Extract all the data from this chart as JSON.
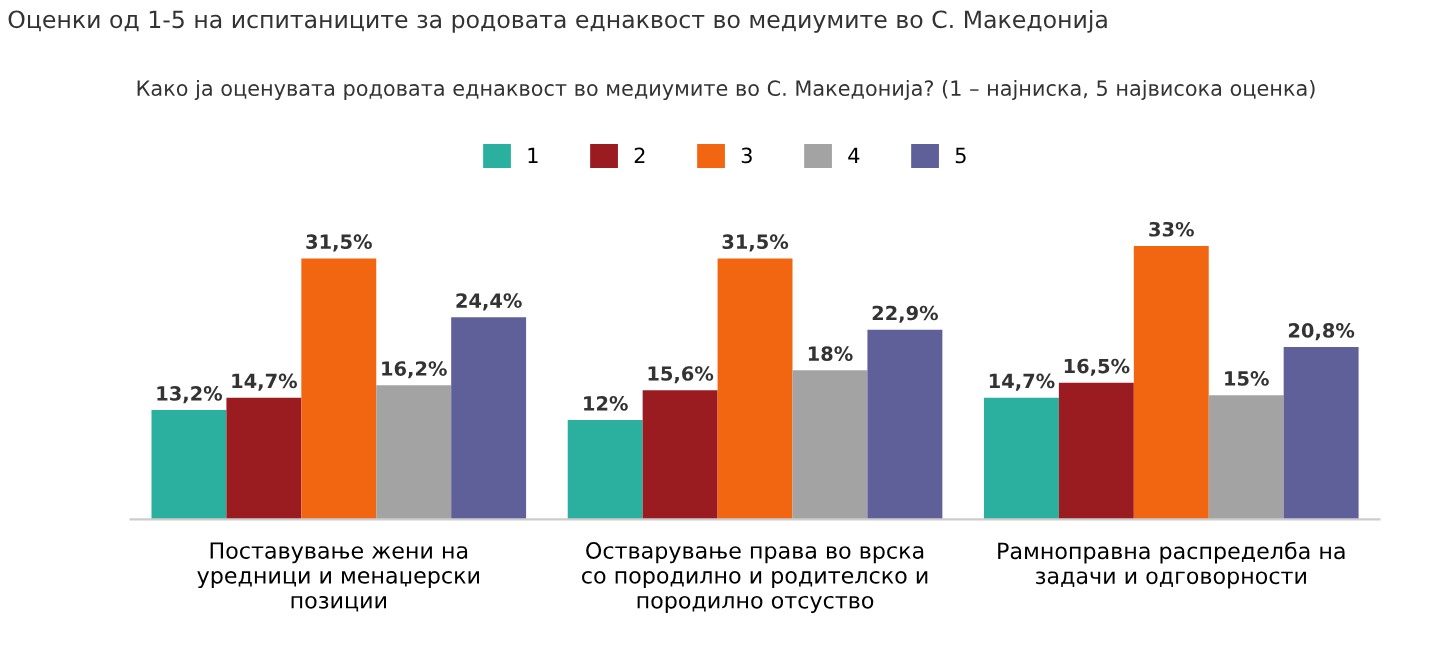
{
  "chart_data": {
    "type": "bar",
    "title": "Оценки од 1-5 на испитаниците за родовата еднаквост во медиумите во С. Македонија",
    "subtitle": "Како ја оценувата родовата еднаквост во медиумите во С. Македонија? (1 – најниска, 5 највисока оценка)",
    "categories": [
      "Поставување жени на\nуредници и менаџерски\nпозиции",
      "Остварување права во врска\nсо породилно и родителско и\nпородилно отсуство",
      "Рамноправна распределба на\nзадачи и одговорности"
    ],
    "series": [
      {
        "name": "1",
        "color": "#2bb0a0",
        "values": [
          13.2,
          12,
          14.7
        ],
        "value_labels": [
          "13,2%",
          "12%",
          "14,7%"
        ]
      },
      {
        "name": "2",
        "color": "#9a1c20",
        "values": [
          14.7,
          15.6,
          16.5
        ],
        "value_labels": [
          "14,7%",
          "15,6%",
          "16,5%"
        ]
      },
      {
        "name": "3",
        "color": "#f26611",
        "values": [
          31.5,
          31.5,
          33
        ],
        "value_labels": [
          "31,5%",
          "31,5%",
          "33%"
        ]
      },
      {
        "name": "4",
        "color": "#a3a3a3",
        "values": [
          16.2,
          18,
          15
        ],
        "value_labels": [
          "16,2%",
          "18%",
          "15%"
        ]
      },
      {
        "name": "5",
        "color": "#5f5f99",
        "values": [
          24.4,
          22.9,
          20.8
        ],
        "value_labels": [
          "24,4%",
          "22,9%",
          "20,8%"
        ]
      }
    ],
    "legend": "top",
    "grid": false
  }
}
